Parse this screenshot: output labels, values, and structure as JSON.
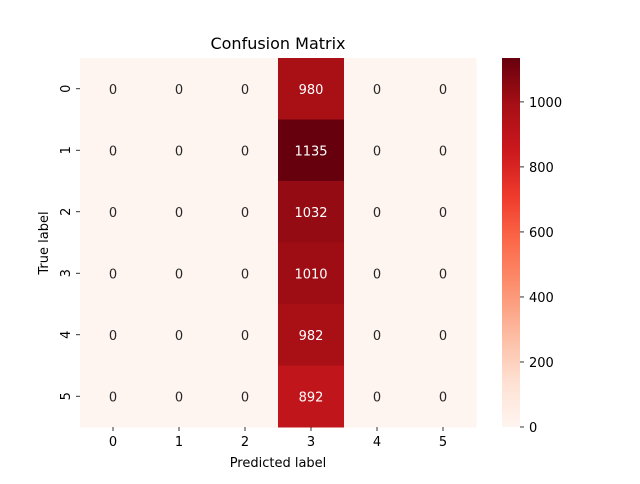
{
  "chart_data": {
    "type": "heatmap",
    "title": "Confusion Matrix",
    "xlabel": "Predicted label",
    "ylabel": "True label",
    "x_categories": [
      "0",
      "1",
      "2",
      "3",
      "4",
      "5"
    ],
    "y_categories": [
      "0",
      "1",
      "2",
      "3",
      "4",
      "5"
    ],
    "values": [
      [
        0,
        0,
        0,
        980,
        0,
        0
      ],
      [
        0,
        0,
        0,
        1135,
        0,
        0
      ],
      [
        0,
        0,
        0,
        1032,
        0,
        0
      ],
      [
        0,
        0,
        0,
        1010,
        0,
        0
      ],
      [
        0,
        0,
        0,
        982,
        0,
        0
      ],
      [
        0,
        0,
        0,
        892,
        0,
        0
      ]
    ],
    "colormap": "Reds",
    "color_range": [
      0,
      1135
    ],
    "colorbar": {
      "ticks": [
        0,
        200,
        400,
        600,
        800,
        1000
      ],
      "placement": "right"
    },
    "grid": false
  }
}
